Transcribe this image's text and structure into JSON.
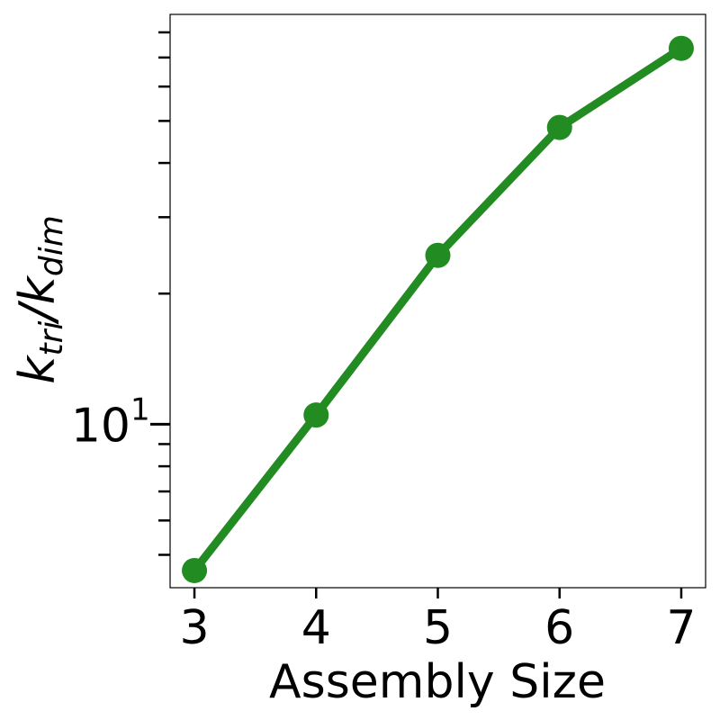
{
  "chart_data": {
    "type": "line",
    "xlabel": "Assembly Size",
    "ylabel": "k_tri/k_dim",
    "ylabel_parts": {
      "base1": "k",
      "sub1": "tri",
      "slash": "/",
      "base2": "k",
      "sub2": "dim"
    },
    "x": [
      3,
      4,
      5,
      6,
      7
    ],
    "series": [
      {
        "values": [
          4.6,
          10.5,
          24.5,
          48.3,
          73.5
        ],
        "color": "#228b22"
      }
    ],
    "x_ticks": [
      3,
      4,
      5,
      6,
      7
    ],
    "x_tick_labels": [
      "3",
      "4",
      "5",
      "6",
      "7"
    ],
    "y_scale": "log",
    "y_major_ticks": [
      10
    ],
    "y_major_tick_labels": [
      {
        "base": "10",
        "exp": "1"
      }
    ],
    "y_minor_ticks": [
      5,
      6,
      7,
      8,
      9,
      20,
      30,
      40,
      50,
      60,
      70,
      80
    ],
    "xlim": [
      2.8,
      7.2
    ],
    "ylim": [
      4.2,
      88
    ],
    "grid": false
  }
}
